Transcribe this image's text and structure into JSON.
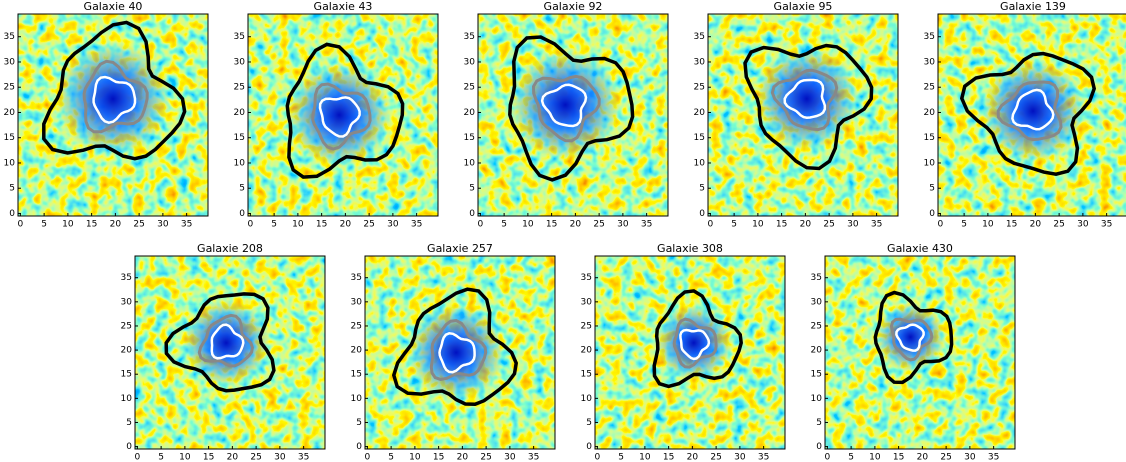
{
  "chart_data": [
    {
      "type": "image",
      "title": "Galaxie 40",
      "xlim": [
        -0.5,
        39.5
      ],
      "ylim": [
        -0.5,
        39.5
      ],
      "xticks": [
        0,
        5,
        10,
        15,
        20,
        25,
        30,
        35
      ],
      "yticks": [
        0,
        5,
        10,
        15,
        20,
        25,
        30,
        35
      ]
    },
    {
      "type": "image",
      "title": "Galaxie 43",
      "xlim": [
        -0.5,
        39.5
      ],
      "ylim": [
        -0.5,
        39.5
      ],
      "xticks": [
        0,
        5,
        10,
        15,
        20,
        25,
        30,
        35
      ],
      "yticks": [
        0,
        5,
        10,
        15,
        20,
        25,
        30,
        35
      ]
    },
    {
      "type": "image",
      "title": "Galaxie 92",
      "xlim": [
        -0.5,
        39.5
      ],
      "ylim": [
        -0.5,
        39.5
      ],
      "xticks": [
        0,
        5,
        10,
        15,
        20,
        25,
        30,
        35
      ],
      "yticks": [
        0,
        5,
        10,
        15,
        20,
        25,
        30,
        35
      ]
    },
    {
      "type": "image",
      "title": "Galaxie 95",
      "xlim": [
        -0.5,
        39.5
      ],
      "ylim": [
        -0.5,
        39.5
      ],
      "xticks": [
        0,
        5,
        10,
        15,
        20,
        25,
        30,
        35
      ],
      "yticks": [
        0,
        5,
        10,
        15,
        20,
        25,
        30,
        35
      ]
    },
    {
      "type": "image",
      "title": "Galaxie 139",
      "xlim": [
        -0.5,
        39.5
      ],
      "ylim": [
        -0.5,
        39.5
      ],
      "xticks": [
        0,
        5,
        10,
        15,
        20,
        25,
        30,
        35
      ],
      "yticks": [
        0,
        5,
        10,
        15,
        20,
        25,
        30,
        35
      ]
    },
    {
      "type": "image",
      "title": "Galaxie 208",
      "xlim": [
        -0.5,
        39.5
      ],
      "ylim": [
        -0.5,
        39.5
      ],
      "xticks": [
        0,
        5,
        10,
        15,
        20,
        25,
        30,
        35
      ],
      "yticks": [
        0,
        5,
        10,
        15,
        20,
        25,
        30,
        35
      ]
    },
    {
      "type": "image",
      "title": "Galaxie 257",
      "xlim": [
        -0.5,
        39.5
      ],
      "ylim": [
        -0.5,
        39.5
      ],
      "xticks": [
        0,
        5,
        10,
        15,
        20,
        25,
        30,
        35
      ],
      "yticks": [
        0,
        5,
        10,
        15,
        20,
        25,
        30,
        35
      ]
    },
    {
      "type": "image",
      "title": "Galaxie 308",
      "xlim": [
        -0.5,
        39.5
      ],
      "ylim": [
        -0.5,
        39.5
      ],
      "xticks": [
        0,
        5,
        10,
        15,
        20,
        25,
        30,
        35
      ],
      "yticks": [
        0,
        5,
        10,
        15,
        20,
        25,
        30,
        35
      ]
    },
    {
      "type": "image",
      "title": "Galaxie 430",
      "xlim": [
        -0.5,
        39.5
      ],
      "ylim": [
        -0.5,
        39.5
      ],
      "xticks": [
        0,
        5,
        10,
        15,
        20,
        25,
        30,
        35
      ],
      "yticks": [
        0,
        5,
        10,
        15,
        20,
        25,
        30,
        35
      ]
    }
  ]
}
